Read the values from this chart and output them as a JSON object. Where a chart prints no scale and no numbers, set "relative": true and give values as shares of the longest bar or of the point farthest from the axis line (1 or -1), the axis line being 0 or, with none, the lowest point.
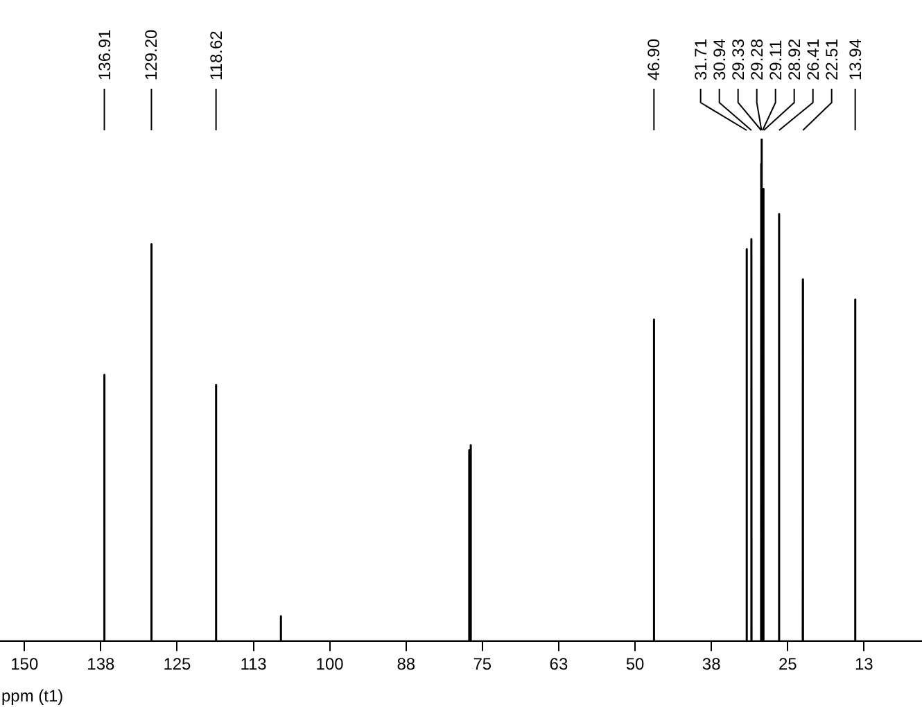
{
  "chart_data": {
    "type": "line",
    "xlabel": "ppm (t1)",
    "relative": true,
    "xlim": [
      154,
      3
    ],
    "xticks": [
      150,
      {
        "value": 137.5,
        "label": "138"
      },
      125,
      {
        "value": 112.5,
        "label": "113"
      },
      100,
      {
        "value": 87.5,
        "label": "88"
      },
      75,
      {
        "value": 62.5,
        "label": "63"
      },
      50,
      {
        "value": 37.5,
        "label": "38"
      },
      25,
      {
        "value": 12.5,
        "label": "13"
      }
    ],
    "series": [
      {
        "color": "#000000",
        "x": [
          154,
          136.93,
          136.91,
          136.89,
          129.22,
          129.2,
          129.18,
          118.64,
          118.62,
          118.6,
          108.02,
          108,
          107.98,
          77.18,
          77.16,
          77.14,
          77.02,
          77,
          76.98,
          76.86,
          76.84,
          76.82,
          46.92,
          46.9,
          46.88,
          31.73,
          31.71,
          31.69,
          30.96,
          30.94,
          30.92,
          29.35,
          29.33,
          29.31,
          29.3,
          29.28,
          29.26,
          29.13,
          29.11,
          29.09,
          28.94,
          28.92,
          28.9,
          26.43,
          26.41,
          26.39,
          22.53,
          22.51,
          22.49,
          13.96,
          13.94,
          13.92,
          3
        ],
        "values": [
          0,
          0,
          0.53,
          0,
          0,
          0.79,
          0,
          0,
          0.51,
          0,
          0,
          0.05,
          0,
          0,
          0.38,
          0,
          0,
          0.39,
          0,
          0,
          0.39,
          0,
          0,
          0.64,
          0,
          0,
          0.78,
          0,
          0,
          0.8,
          0,
          0,
          0.95,
          0,
          0,
          1,
          0,
          0,
          0.9,
          0,
          0,
          0.9,
          0,
          0,
          0.85,
          0,
          0,
          0.72,
          0,
          0,
          0.68,
          0,
          0
        ]
      }
    ],
    "annotations": [
      {
        "text": "136.91",
        "x": 136.91
      },
      {
        "text": "129.20",
        "x": 129.2
      },
      {
        "text": "118.62",
        "x": 118.62
      },
      {
        "text": "46.90",
        "x": 46.9
      },
      {
        "text": "31.71",
        "x": 31.71
      },
      {
        "text": "30.94",
        "x": 30.94
      },
      {
        "text": "29.33",
        "x": 29.33
      },
      {
        "text": "29.28",
        "x": 29.28
      },
      {
        "text": "29.11",
        "x": 29.11
      },
      {
        "text": "28.92",
        "x": 28.92
      },
      {
        "text": "26.41",
        "x": 26.41
      },
      {
        "text": "22.51",
        "x": 22.51
      },
      {
        "text": "13.94",
        "x": 13.94
      }
    ]
  }
}
